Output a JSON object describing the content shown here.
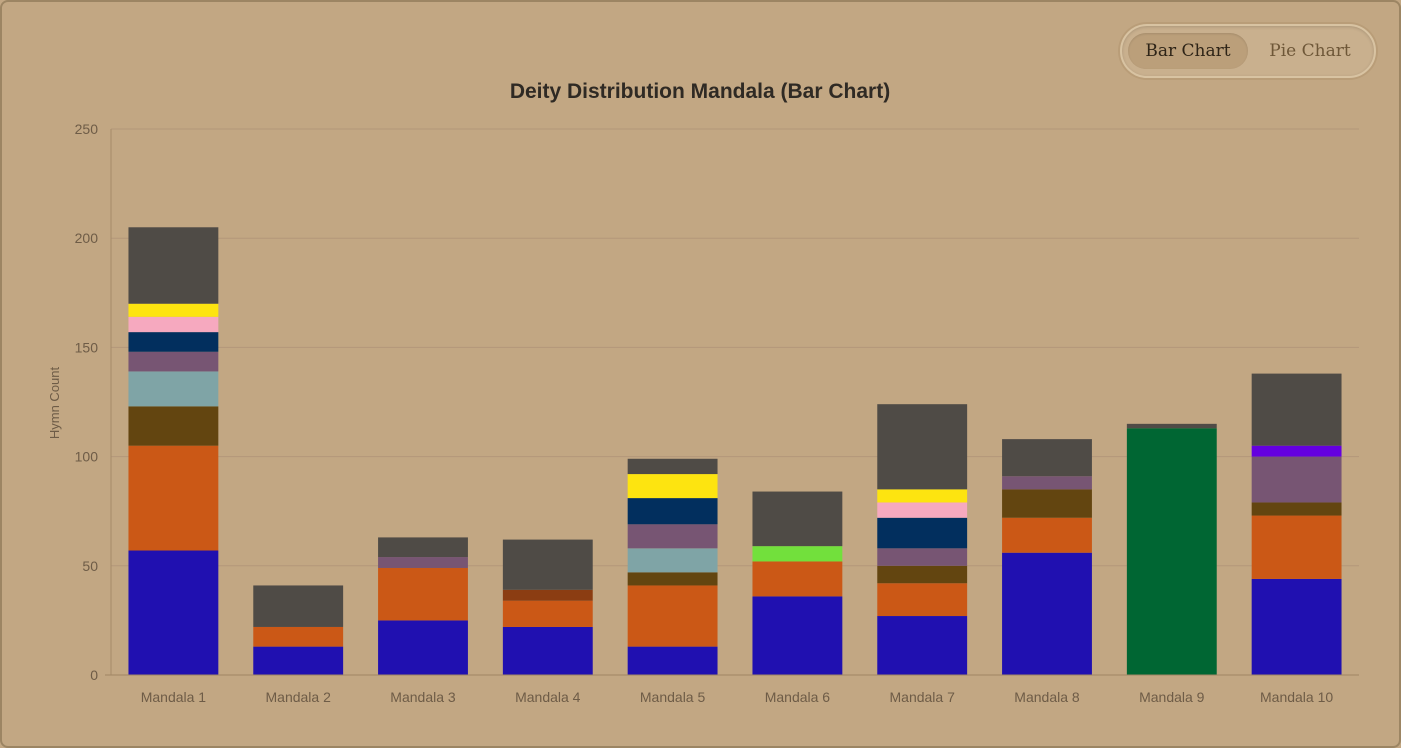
{
  "toggle": {
    "bar_label": "Bar Chart",
    "pie_label": "Pie Chart"
  },
  "chart_data": {
    "type": "bar",
    "stacked": true,
    "title": "Deity Distribution Mandala (Bar Chart)",
    "xlabel": "",
    "ylabel": "Hymn Count",
    "ylim": [
      0,
      250
    ],
    "yticks": [
      0,
      50,
      100,
      150,
      200,
      250
    ],
    "grid": true,
    "categories": [
      "Mandala 1",
      "Mandala 2",
      "Mandala 3",
      "Mandala 4",
      "Mandala 5",
      "Mandala 6",
      "Mandala 7",
      "Mandala 8",
      "Mandala 9",
      "Mandala 10"
    ],
    "series": [
      {
        "color": "#2010b0",
        "values": [
          57,
          13,
          25,
          22,
          13,
          36,
          27,
          56,
          0,
          44
        ]
      },
      {
        "color": "#cb5816",
        "values": [
          48,
          9,
          24,
          12,
          28,
          16,
          15,
          16,
          0,
          29
        ]
      },
      {
        "color": "#8b3d12",
        "values": [
          0,
          0,
          0,
          5,
          0,
          0,
          0,
          0,
          0,
          0
        ]
      },
      {
        "color": "#634510",
        "values": [
          18,
          0,
          0,
          0,
          6,
          0,
          8,
          13,
          0,
          6
        ]
      },
      {
        "color": "#7fa4a6",
        "values": [
          16,
          0,
          0,
          0,
          11,
          0,
          0,
          0,
          0,
          0
        ]
      },
      {
        "color": "#775573",
        "values": [
          9,
          0,
          5,
          0,
          11,
          0,
          8,
          6,
          0,
          21
        ]
      },
      {
        "color": "#022f5e",
        "values": [
          9,
          0,
          0,
          0,
          12,
          0,
          14,
          0,
          0,
          0
        ]
      },
      {
        "color": "#f6a9bf",
        "values": [
          7,
          0,
          0,
          0,
          0,
          0,
          7,
          0,
          0,
          0
        ]
      },
      {
        "color": "#fde410",
        "values": [
          6,
          0,
          0,
          0,
          11,
          0,
          6,
          0,
          0,
          0
        ]
      },
      {
        "color": "#72e03c",
        "values": [
          0,
          0,
          0,
          0,
          0,
          7,
          0,
          0,
          0,
          0
        ]
      },
      {
        "color": "#6400e0",
        "values": [
          0,
          0,
          0,
          0,
          0,
          0,
          0,
          0,
          0,
          5
        ]
      },
      {
        "color": "#006633",
        "values": [
          0,
          0,
          0,
          0,
          0,
          0,
          0,
          0,
          113,
          0
        ]
      },
      {
        "color": "#4f4b46",
        "values": [
          35,
          19,
          9,
          23,
          7,
          25,
          39,
          17,
          2,
          33
        ]
      }
    ]
  }
}
